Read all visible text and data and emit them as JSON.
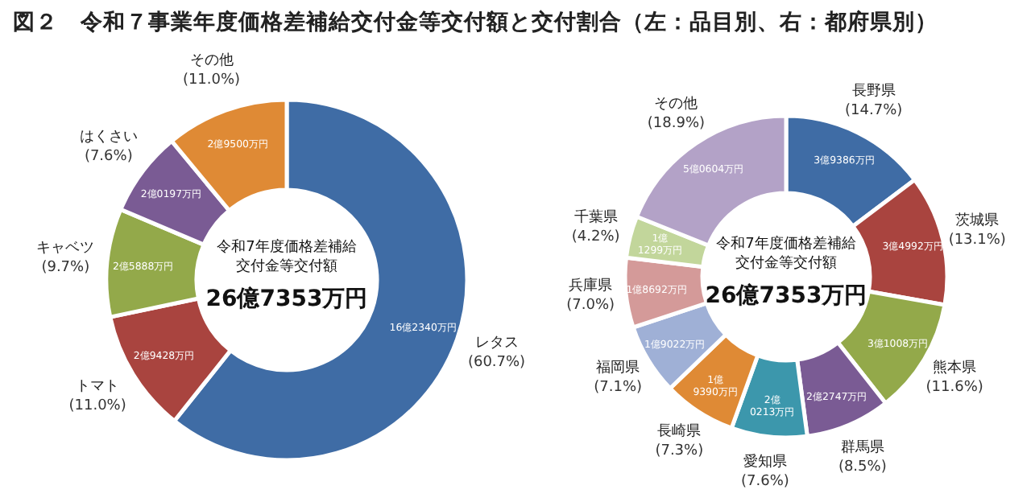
{
  "chart_data": [
    {
      "type": "donut",
      "title": "図２　令和７事業年度価格差補給交付金等交付額と交付割合（左：品目別、右：都府県別）",
      "categories": [
        "レタス",
        "トマト",
        "キャベツ",
        "はくさい",
        "その他"
      ],
      "values": [
        60.7,
        11.0,
        9.7,
        7.6,
        11.0
      ],
      "colors": [
        "#3f6ca5",
        "#a9443f",
        "#93a94a",
        "#7a5b94",
        "#df8a35"
      ],
      "value_labels": [
        "(60.7%)",
        "(11.0%)",
        "(9.7%)",
        "(7.6%)",
        "(11.0%)"
      ],
      "annotations": [
        "16億2340万円",
        "2億9428万円",
        "2億5888万円",
        "2億0197万円",
        "2億9500万円",
        "令和7年度価格差補給",
        "交付金等交付額",
        "26億7353万円"
      ]
    },
    {
      "type": "donut",
      "categories": [
        "長野県",
        "茨城県",
        "熊本県",
        "群馬県",
        "愛知県",
        "長崎県",
        "福岡県",
        "兵庫県",
        "千葉県",
        "その他"
      ],
      "values": [
        14.7,
        13.1,
        11.6,
        8.5,
        7.6,
        7.3,
        7.1,
        7.0,
        4.2,
        18.9
      ],
      "colors": [
        "#3f6ca5",
        "#a9443f",
        "#93a94a",
        "#7a5b94",
        "#3c97ac",
        "#df8a35",
        "#9fb0d6",
        "#d49a99",
        "#c2d69b",
        "#b3a2c7"
      ],
      "value_labels": [
        "(14.7%)",
        "(13.1%)",
        "(11.6%)",
        "(8.5%)",
        "(7.6%)",
        "(7.3%)",
        "(7.1%)",
        "(7.0%)",
        "(4.2%)",
        "(18.9%)"
      ],
      "annotations": [
        "3億9386万円",
        "3億4992万円",
        "3億1008万円",
        "2億2747万円",
        "2億\n0213万円",
        "1億\n9390万円",
        "1億9022万円",
        "1億8692万円",
        "1億\n1299万円",
        "5億0604万円",
        "令和7年度価格差補給",
        "交付金等交付額",
        "26億7353万円"
      ]
    }
  ]
}
